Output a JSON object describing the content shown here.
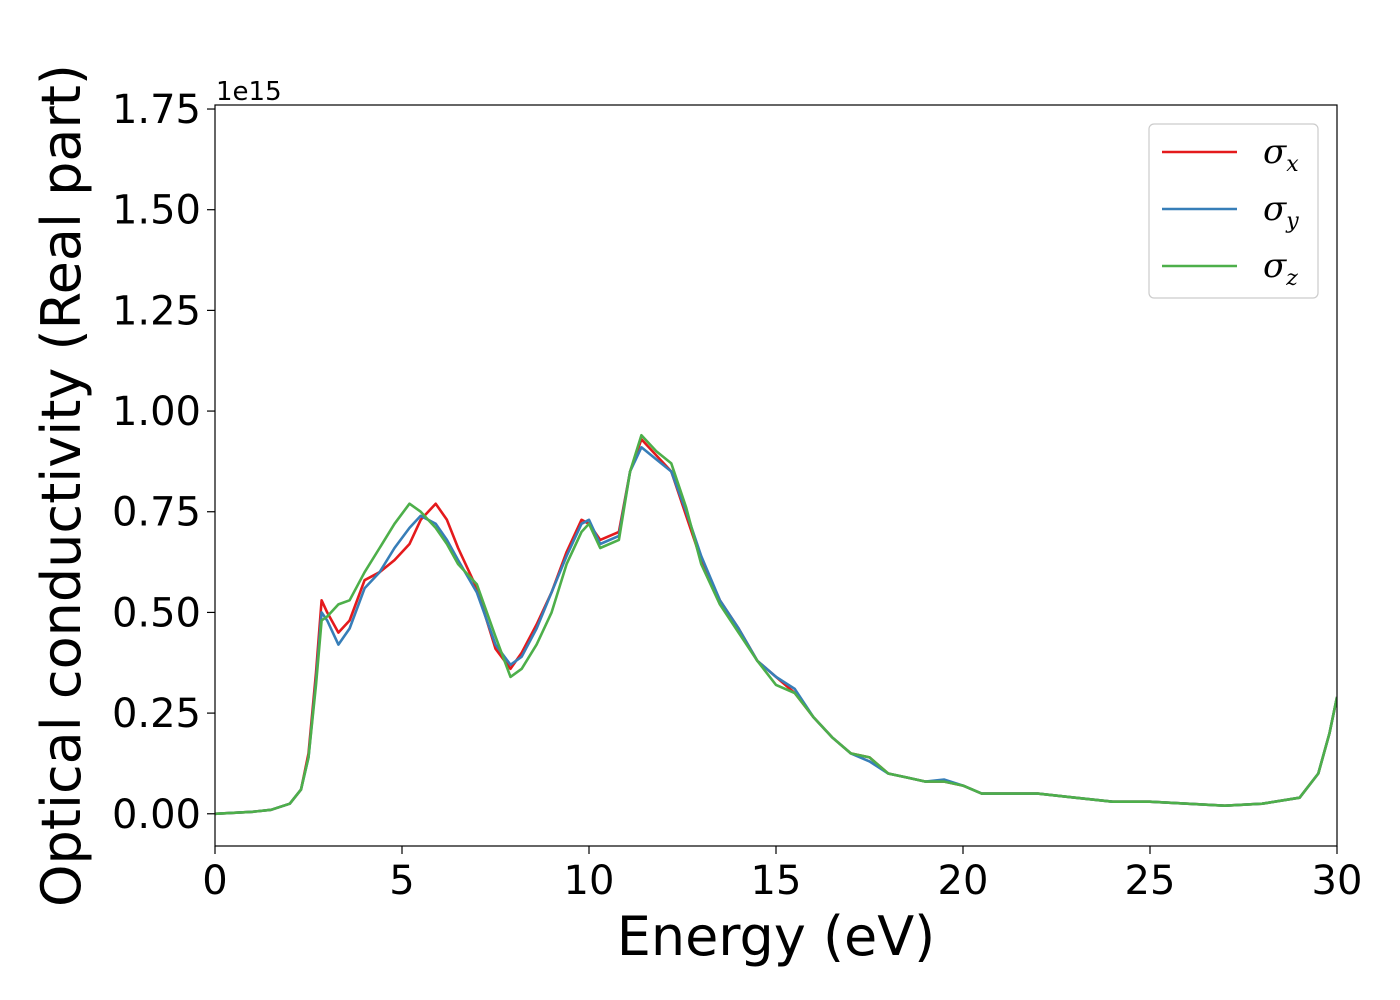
{
  "chart_data": {
    "type": "line",
    "title": "",
    "xlabel": "Energy (eV)",
    "ylabel": "Optical conductivity (Real part)",
    "y_offset_label": "1e15",
    "xlim": [
      0,
      30
    ],
    "ylim": [
      -0.08,
      1.76
    ],
    "x_ticks": [
      0,
      5,
      10,
      15,
      20,
      25,
      30
    ],
    "x_tick_labels": [
      "0",
      "5",
      "10",
      "15",
      "20",
      "25",
      "30"
    ],
    "y_ticks": [
      0.0,
      0.25,
      0.5,
      0.75,
      1.0,
      1.25,
      1.5,
      1.75
    ],
    "y_tick_labels": [
      "0.00",
      "0.25",
      "0.50",
      "0.75",
      "1.00",
      "1.25",
      "1.50",
      "1.75"
    ],
    "grid": false,
    "legend_position": "top-right",
    "series": [
      {
        "name": "σx",
        "symbol": "σ",
        "sub": "x",
        "color": "#e41a1c",
        "x": [
          0,
          1,
          1.5,
          2.0,
          2.3,
          2.5,
          2.7,
          2.85,
          3.0,
          3.3,
          3.6,
          4.0,
          4.4,
          4.8,
          5.2,
          5.5,
          5.9,
          6.2,
          6.5,
          7.0,
          7.5,
          7.9,
          8.2,
          8.6,
          9.0,
          9.4,
          9.8,
          10.0,
          10.3,
          10.8,
          11.1,
          11.4,
          11.8,
          12.2,
          12.6,
          13.0,
          13.5,
          14.0,
          14.5,
          15.0,
          15.5,
          16.0,
          16.5,
          17.0,
          17.5,
          18.0,
          18.5,
          19.0,
          19.5,
          20.0,
          20.5,
          21.0,
          22.0,
          23.0,
          24.0,
          25.0,
          26.0,
          27.0,
          28.0,
          29.0,
          29.5,
          29.8,
          30.0
        ],
        "y": [
          0.0,
          0.005,
          0.01,
          0.025,
          0.06,
          0.15,
          0.35,
          0.53,
          0.5,
          0.45,
          0.48,
          0.58,
          0.6,
          0.63,
          0.67,
          0.73,
          0.77,
          0.73,
          0.66,
          0.56,
          0.41,
          0.36,
          0.4,
          0.47,
          0.55,
          0.65,
          0.73,
          0.72,
          0.68,
          0.7,
          0.85,
          0.93,
          0.89,
          0.85,
          0.74,
          0.63,
          0.53,
          0.46,
          0.38,
          0.34,
          0.3,
          0.24,
          0.19,
          0.15,
          0.14,
          0.1,
          0.09,
          0.08,
          0.08,
          0.07,
          0.05,
          0.05,
          0.05,
          0.04,
          0.03,
          0.03,
          0.025,
          0.02,
          0.025,
          0.04,
          0.1,
          0.2,
          0.29
        ]
      },
      {
        "name": "σy",
        "symbol": "σ",
        "sub": "y",
        "color": "#377eb8",
        "x": [
          0,
          1,
          1.5,
          2.0,
          2.3,
          2.5,
          2.7,
          2.85,
          3.0,
          3.3,
          3.6,
          4.0,
          4.4,
          4.8,
          5.2,
          5.5,
          5.9,
          6.2,
          6.5,
          7.0,
          7.5,
          7.9,
          8.2,
          8.6,
          9.0,
          9.4,
          9.8,
          10.0,
          10.3,
          10.8,
          11.1,
          11.4,
          11.8,
          12.2,
          12.6,
          13.0,
          13.5,
          14.0,
          14.5,
          15.0,
          15.5,
          16.0,
          16.5,
          17.0,
          17.5,
          18.0,
          18.5,
          19.0,
          19.5,
          20.0,
          20.5,
          21.0,
          22.0,
          23.0,
          24.0,
          25.0,
          26.0,
          27.0,
          28.0,
          29.0,
          29.5,
          29.8,
          30.0
        ],
        "y": [
          0.0,
          0.005,
          0.01,
          0.025,
          0.06,
          0.14,
          0.33,
          0.5,
          0.48,
          0.42,
          0.46,
          0.56,
          0.6,
          0.66,
          0.71,
          0.74,
          0.72,
          0.68,
          0.63,
          0.55,
          0.42,
          0.37,
          0.39,
          0.46,
          0.55,
          0.64,
          0.72,
          0.73,
          0.67,
          0.69,
          0.85,
          0.91,
          0.88,
          0.85,
          0.75,
          0.64,
          0.53,
          0.46,
          0.38,
          0.34,
          0.31,
          0.24,
          0.19,
          0.15,
          0.13,
          0.1,
          0.09,
          0.08,
          0.085,
          0.07,
          0.05,
          0.05,
          0.05,
          0.04,
          0.03,
          0.03,
          0.025,
          0.02,
          0.025,
          0.04,
          0.1,
          0.2,
          0.29
        ]
      },
      {
        "name": "σz",
        "symbol": "σ",
        "sub": "z",
        "color": "#4daf4a",
        "x": [
          0,
          1,
          1.5,
          2.0,
          2.3,
          2.5,
          2.7,
          2.85,
          3.0,
          3.3,
          3.6,
          4.0,
          4.4,
          4.8,
          5.2,
          5.5,
          5.9,
          6.2,
          6.5,
          7.0,
          7.5,
          7.9,
          8.2,
          8.6,
          9.0,
          9.4,
          9.8,
          10.0,
          10.3,
          10.8,
          11.1,
          11.4,
          11.8,
          12.2,
          12.6,
          13.0,
          13.5,
          14.0,
          14.5,
          15.0,
          15.5,
          16.0,
          16.5,
          17.0,
          17.5,
          18.0,
          18.5,
          19.0,
          19.5,
          20.0,
          20.5,
          21.0,
          22.0,
          23.0,
          24.0,
          25.0,
          26.0,
          27.0,
          28.0,
          29.0,
          29.5,
          29.8,
          30.0
        ],
        "y": [
          0.0,
          0.005,
          0.01,
          0.025,
          0.06,
          0.14,
          0.32,
          0.48,
          0.49,
          0.52,
          0.53,
          0.6,
          0.66,
          0.72,
          0.77,
          0.75,
          0.71,
          0.67,
          0.62,
          0.57,
          0.44,
          0.34,
          0.36,
          0.42,
          0.5,
          0.62,
          0.7,
          0.72,
          0.66,
          0.68,
          0.85,
          0.94,
          0.9,
          0.87,
          0.76,
          0.62,
          0.52,
          0.45,
          0.38,
          0.32,
          0.3,
          0.24,
          0.19,
          0.15,
          0.14,
          0.1,
          0.09,
          0.08,
          0.08,
          0.07,
          0.05,
          0.05,
          0.05,
          0.04,
          0.03,
          0.03,
          0.025,
          0.02,
          0.025,
          0.04,
          0.1,
          0.2,
          0.29
        ]
      }
    ]
  }
}
